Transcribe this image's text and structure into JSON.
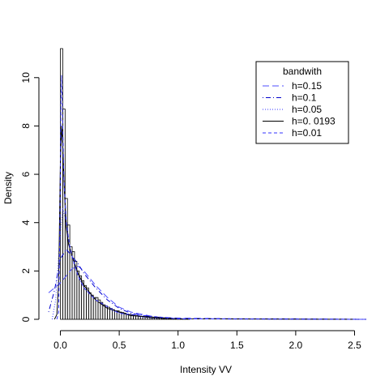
{
  "chart_data": {
    "type": "histogram-density",
    "xlabel": "Intensity VV",
    "ylabel": "Density",
    "xlim": [
      -0.1,
      2.6
    ],
    "ylim": [
      0,
      11.2
    ],
    "xticks": [
      0.0,
      0.5,
      1.0,
      1.5,
      2.0,
      2.5
    ],
    "xtick_labels": [
      "0.0",
      "0.5",
      "1.0",
      "1.5",
      "2.0",
      "2.5"
    ],
    "yticks": [
      0,
      2,
      4,
      6,
      8,
      10
    ],
    "ytick_labels": [
      "0",
      "2",
      "4",
      "6",
      "8",
      "10"
    ],
    "histogram": {
      "bin_width": 0.02,
      "start": 0.0,
      "densities": [
        11.2,
        8.7,
        5.0,
        3.9,
        3.0,
        2.8,
        2.4,
        2.0,
        1.8,
        1.6,
        1.4,
        1.3,
        1.1,
        1.0,
        0.9,
        0.9,
        0.8,
        0.7,
        0.6,
        0.55,
        0.5,
        0.45,
        0.4,
        0.35,
        0.35,
        0.3,
        0.28,
        0.25,
        0.22,
        0.2,
        0.18,
        0.16,
        0.15,
        0.12,
        0.12,
        0.1,
        0.08,
        0.08,
        0.06,
        0.05,
        0.05,
        0.04,
        0.04,
        0.03,
        0.03,
        0.03,
        0.02,
        0.02,
        0.02,
        0.02,
        0.01,
        0.01,
        0.01,
        0.01,
        0.01
      ]
    },
    "legend": {
      "title": "bandwith",
      "position": "top-right",
      "entries": [
        {
          "label": "h=0.15",
          "color": "#4d4dff",
          "dash": "long-dash"
        },
        {
          "label": "h=0.1",
          "color": "#0000cc",
          "dash": "dot-dash"
        },
        {
          "label": "h=0.05",
          "color": "#3333ff",
          "dash": "dotted"
        },
        {
          "label": "h=0. 0193",
          "color": "#000000",
          "dash": "solid"
        },
        {
          "label": "h=0.01",
          "color": "#3333ff",
          "dash": "dashed"
        }
      ]
    },
    "series": [
      {
        "label": "h=0.15",
        "x": [
          -0.1,
          0.0,
          0.05,
          0.1,
          0.15,
          0.2,
          0.3,
          0.4,
          0.5,
          0.6,
          0.8,
          1.0,
          1.5,
          2.0,
          2.6
        ],
        "y": [
          1.1,
          1.5,
          1.8,
          2.1,
          2.2,
          2.0,
          1.4,
          0.9,
          0.5,
          0.3,
          0.1,
          0.05,
          0.02,
          0.02,
          0.0
        ]
      },
      {
        "label": "h=0.1",
        "x": [
          -0.1,
          -0.05,
          0.0,
          0.05,
          0.1,
          0.15,
          0.2,
          0.3,
          0.4,
          0.5,
          0.6,
          0.8,
          1.0,
          2.6
        ],
        "y": [
          0.3,
          1.2,
          2.5,
          2.9,
          2.6,
          2.3,
          1.9,
          1.3,
          0.8,
          0.45,
          0.25,
          0.08,
          0.03,
          0.0
        ]
      },
      {
        "label": "h=0.05",
        "x": [
          -0.07,
          -0.04,
          -0.01,
          0.02,
          0.05,
          0.08,
          0.12,
          0.16,
          0.2,
          0.3,
          0.4,
          0.5,
          0.7,
          1.0,
          2.6
        ],
        "y": [
          0.0,
          0.8,
          3.0,
          4.6,
          4.0,
          3.0,
          2.2,
          1.7,
          1.3,
          0.8,
          0.45,
          0.25,
          0.08,
          0.02,
          0.0
        ]
      },
      {
        "label": "h=0. 0193",
        "x": [
          -0.05,
          -0.03,
          -0.015,
          0.0,
          0.01,
          0.02,
          0.035,
          0.05,
          0.07,
          0.1,
          0.15,
          0.2,
          0.3,
          0.4,
          0.6,
          1.0,
          2.5
        ],
        "y": [
          0.0,
          0.2,
          1.5,
          6.5,
          8.0,
          7.2,
          5.2,
          3.8,
          3.1,
          2.6,
          1.9,
          1.4,
          0.8,
          0.45,
          0.15,
          0.02,
          0.0
        ]
      },
      {
        "label": "h=0.01",
        "x": [
          -0.03,
          -0.015,
          -0.005,
          0.005,
          0.01,
          0.02,
          0.03,
          0.05,
          0.08,
          0.1,
          0.15,
          0.2,
          0.3,
          0.5,
          1.0,
          2.5
        ],
        "y": [
          0.0,
          0.3,
          3.5,
          9.0,
          10.1,
          8.0,
          5.8,
          4.0,
          3.0,
          2.6,
          1.8,
          1.3,
          0.8,
          0.25,
          0.02,
          0.0
        ]
      }
    ],
    "grid": false
  }
}
